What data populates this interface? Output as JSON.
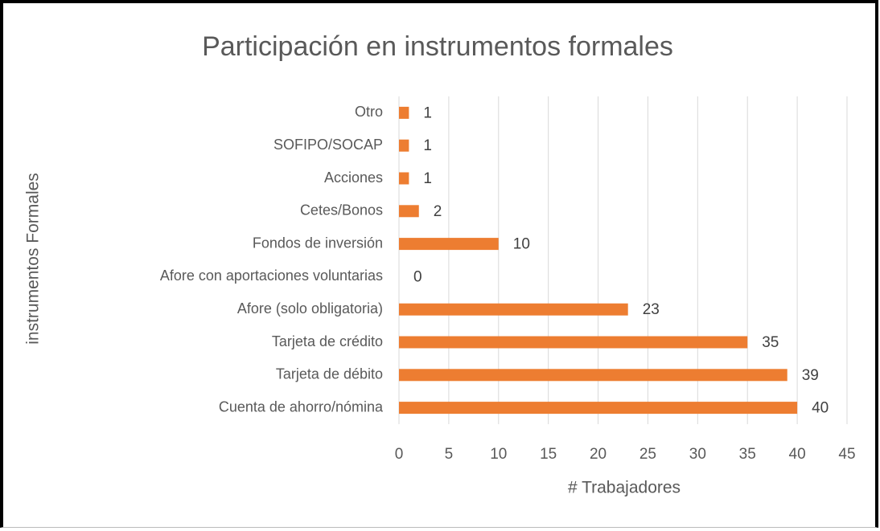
{
  "chart_data": {
    "type": "bar",
    "orientation": "horizontal",
    "title": "Participación en instrumentos formales",
    "x_label": "# Trabajadores",
    "y_label": "instrumentos Formales",
    "categories": [
      "Otro",
      "SOFIPO/SOCAP",
      "Acciones",
      "Cetes/Bonos",
      "Fondos de inversión",
      "Afore con aportaciones voluntarias",
      "Afore (solo obligatoria)",
      "Tarjeta de crédito",
      "Tarjeta de débito",
      "Cuenta de ahorro/nómina"
    ],
    "values": [
      1,
      1,
      1,
      2,
      10,
      0,
      23,
      35,
      39,
      40
    ],
    "color": "#ed7d31",
    "xlim": [
      0,
      45
    ],
    "xticks": [
      0,
      5,
      10,
      15,
      20,
      25,
      30,
      35,
      40,
      45
    ],
    "grid": true
  }
}
